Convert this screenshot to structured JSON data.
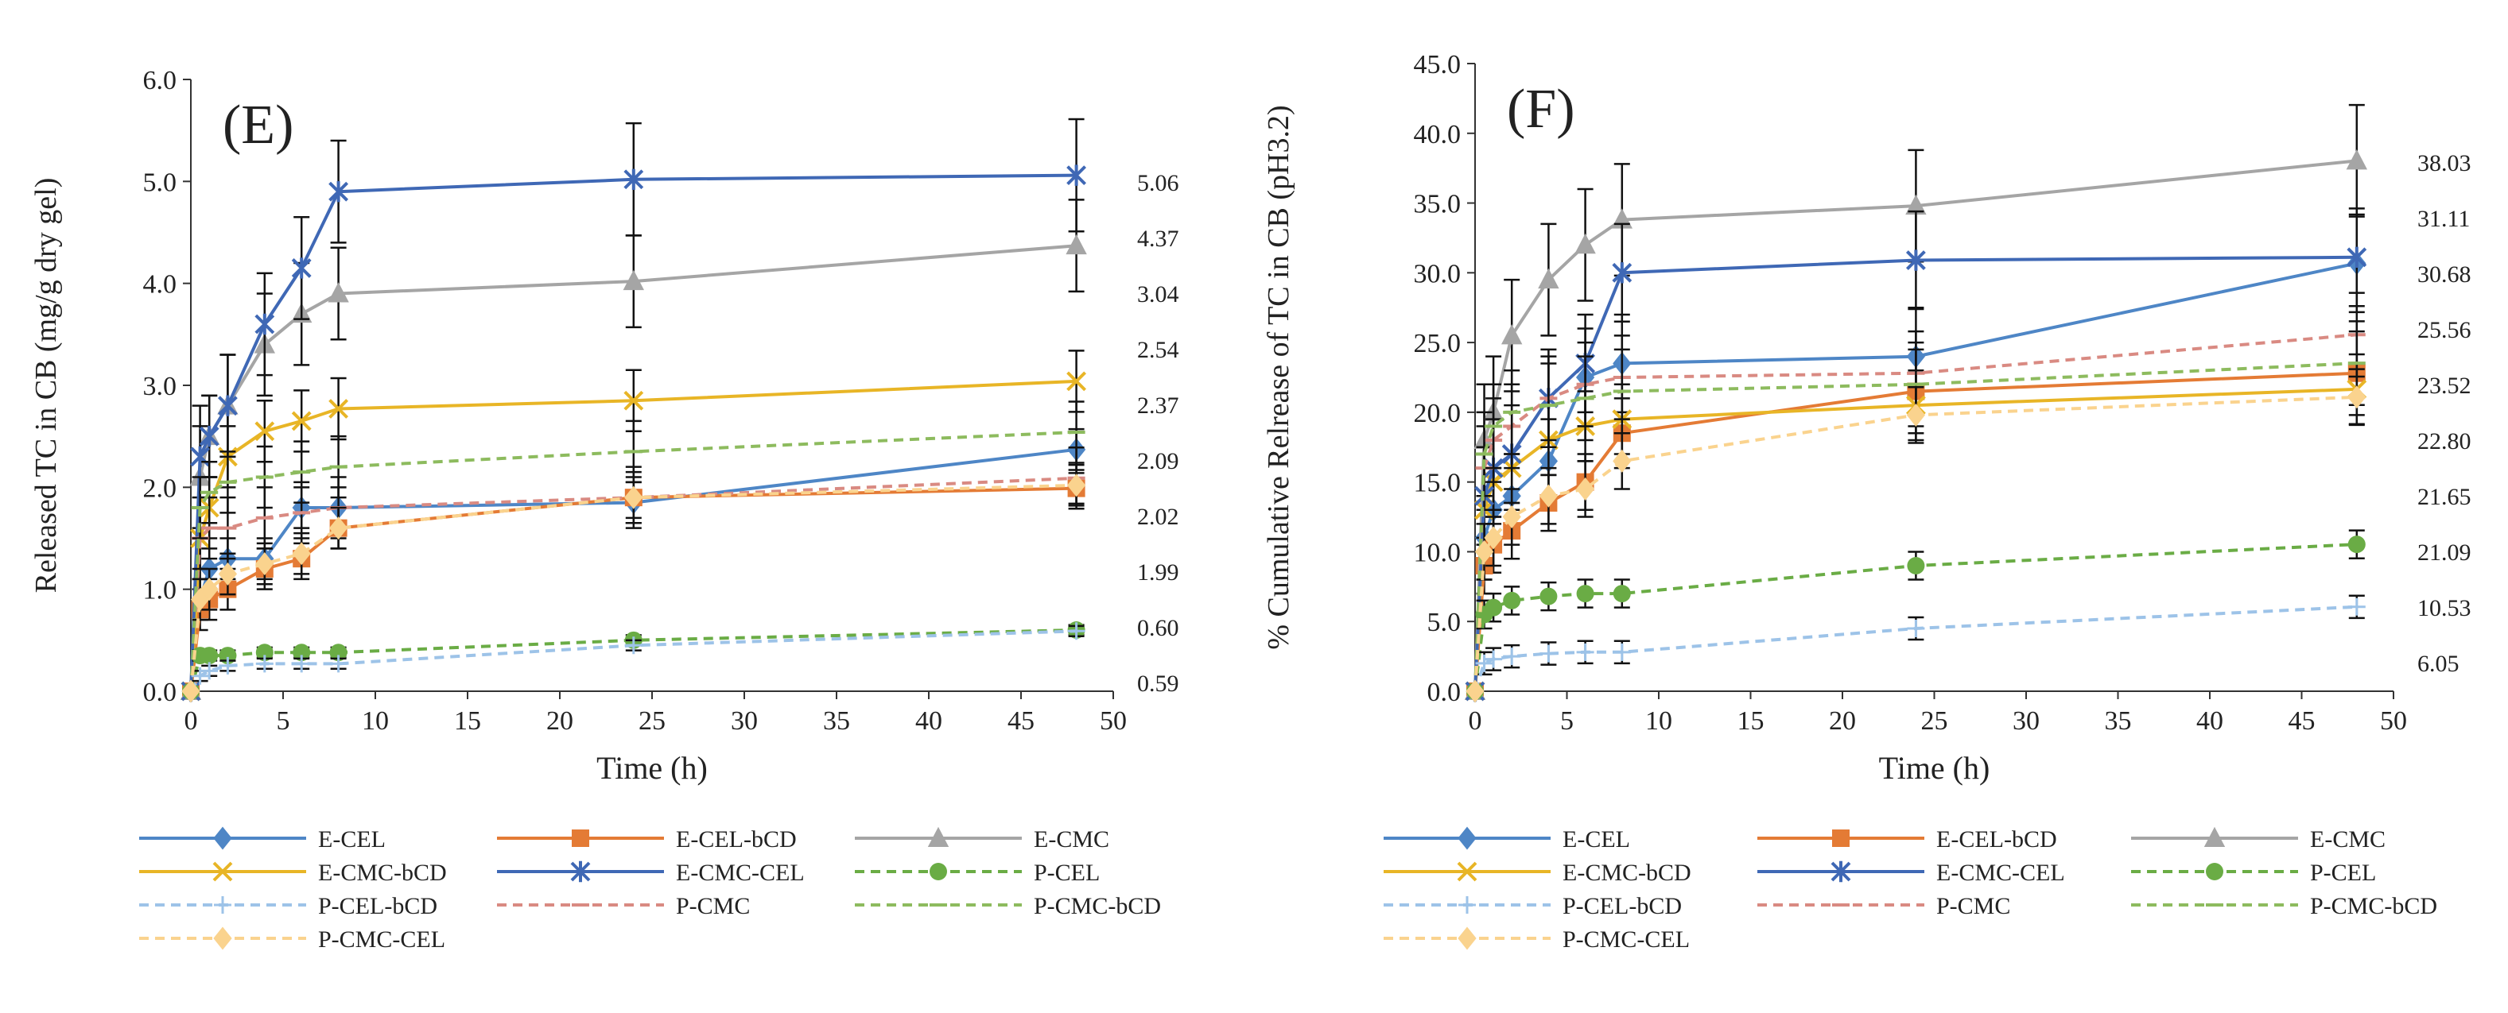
{
  "chart_data": [
    {
      "type": "line",
      "panel_label": "(E)",
      "ylabel": "Released TC in CB (mg/g dry gel)",
      "xlabel": "Time (h)",
      "xlim": [
        0,
        50
      ],
      "ylim": [
        0,
        6
      ],
      "x_ticks": [
        "0",
        "5",
        "10",
        "15",
        "20",
        "25",
        "30",
        "35",
        "40",
        "45",
        "50"
      ],
      "y_ticks": [
        "0.0",
        "1.0",
        "2.0",
        "3.0",
        "4.0",
        "5.0",
        "6.0"
      ],
      "x": [
        0,
        0.5,
        1,
        2,
        4,
        6,
        8,
        24,
        48
      ],
      "series": [
        {
          "name": "E-CEL",
          "values": [
            0,
            0.9,
            1.2,
            1.3,
            1.3,
            1.8,
            1.8,
            1.85,
            2.37
          ],
          "errors": [
            0,
            0.2,
            0.2,
            0.2,
            0.2,
            0.2,
            0.2,
            0.2,
            0.2
          ]
        },
        {
          "name": "E-CEL-bCD",
          "values": [
            0,
            0.8,
            0.9,
            1.0,
            1.2,
            1.3,
            1.6,
            1.9,
            1.99
          ],
          "errors": [
            0,
            0.2,
            0.2,
            0.2,
            0.2,
            0.2,
            0.2,
            0.25,
            0.15
          ]
        },
        {
          "name": "E-CMC",
          "values": [
            0,
            2.1,
            2.5,
            2.8,
            3.4,
            3.7,
            3.9,
            4.02,
            4.37
          ],
          "errors": [
            0,
            0.5,
            0.4,
            0.5,
            0.5,
            0.5,
            0.45,
            0.45,
            0.45
          ]
        },
        {
          "name": "E-CMC-bCD",
          "values": [
            0,
            1.5,
            1.8,
            2.3,
            2.55,
            2.65,
            2.77,
            2.85,
            3.04
          ],
          "errors": [
            0,
            0.4,
            0.3,
            0.3,
            0.3,
            0.3,
            0.3,
            0.3,
            0.3
          ]
        },
        {
          "name": "E-CMC-CEL",
          "values": [
            0,
            2.3,
            2.5,
            2.8,
            3.6,
            4.15,
            4.9,
            5.02,
            5.06
          ],
          "errors": [
            0,
            0.5,
            0.4,
            0.5,
            0.5,
            0.5,
            0.5,
            0.55,
            0.55
          ]
        },
        {
          "name": "P-CEL",
          "values": [
            0,
            0.35,
            0.35,
            0.35,
            0.38,
            0.38,
            0.38,
            0.5,
            0.6
          ],
          "errors": [
            0,
            0.05,
            0.05,
            0.05,
            0.05,
            0.05,
            0.05,
            0.05,
            0.05
          ]
        },
        {
          "name": "P-CEL-bCD",
          "values": [
            0,
            0.15,
            0.2,
            0.25,
            0.27,
            0.27,
            0.27,
            0.45,
            0.59
          ],
          "errors": [
            0,
            0.05,
            0.05,
            0.05,
            0.05,
            0.05,
            0.05,
            0.05,
            0.05
          ]
        },
        {
          "name": "P-CMC",
          "values": [
            0,
            1.5,
            1.6,
            1.6,
            1.7,
            1.75,
            1.8,
            1.9,
            2.09
          ],
          "errors": [
            0,
            0.3,
            0.3,
            0.3,
            0.3,
            0.3,
            0.3,
            0.3,
            0.3
          ]
        },
        {
          "name": "P-CMC-bCD",
          "values": [
            0,
            1.8,
            1.95,
            2.05,
            2.1,
            2.15,
            2.2,
            2.35,
            2.54
          ],
          "errors": [
            0,
            0.3,
            0.3,
            0.3,
            0.3,
            0.3,
            0.3,
            0.3,
            0.3
          ]
        },
        {
          "name": "P-CMC-CEL",
          "values": [
            0,
            0.9,
            1.0,
            1.15,
            1.25,
            1.35,
            1.6,
            1.9,
            2.02
          ],
          "errors": [
            0,
            0.2,
            0.2,
            0.2,
            0.2,
            0.2,
            0.2,
            0.2,
            0.2
          ]
        }
      ],
      "end_labels": [
        "5.06",
        "4.37",
        "3.04",
        "2.54",
        "2.37",
        "2.09",
        "2.02",
        "1.99",
        "0.60",
        "0.59"
      ]
    },
    {
      "type": "line",
      "panel_label": "(F)",
      "ylabel": "% Cumulative Relrease of TC in CB (pH3.2)",
      "xlabel": "Time (h)",
      "xlim": [
        0,
        50
      ],
      "ylim": [
        0,
        45
      ],
      "x_ticks": [
        "0",
        "5",
        "10",
        "15",
        "20",
        "25",
        "30",
        "35",
        "40",
        "45",
        "50"
      ],
      "y_ticks": [
        "0.0",
        "5.0",
        "10.0",
        "15.0",
        "20.0",
        "25.0",
        "30.0",
        "35.0",
        "40.0",
        "45.0"
      ],
      "x": [
        0,
        0.5,
        1,
        2,
        4,
        6,
        8,
        24,
        48
      ],
      "series": [
        {
          "name": "E-CEL",
          "values": [
            0,
            11,
            13,
            14,
            16.5,
            22.5,
            23.5,
            24,
            30.68
          ],
          "errors": [
            0,
            3,
            3,
            3,
            3,
            3.5,
            3.5,
            3.5,
            3.5
          ]
        },
        {
          "name": "E-CEL-bCD",
          "values": [
            0,
            9,
            10.5,
            11.5,
            13.5,
            15,
            18.5,
            21.5,
            22.8
          ],
          "errors": [
            0,
            2,
            2,
            2,
            2,
            2,
            2.5,
            3,
            3
          ]
        },
        {
          "name": "E-CMC",
          "values": [
            0,
            18,
            20,
            25.5,
            29.5,
            32,
            33.8,
            34.8,
            38.03
          ],
          "errors": [
            0,
            4,
            4,
            4,
            4,
            4,
            4,
            4,
            4
          ]
        },
        {
          "name": "E-CMC-bCD",
          "values": [
            0,
            13,
            15,
            16,
            18,
            19,
            19.5,
            20.5,
            21.65
          ],
          "errors": [
            0,
            3,
            3,
            3,
            2.5,
            2.5,
            2.5,
            2.5,
            2.5
          ]
        },
        {
          "name": "E-CMC-CEL",
          "values": [
            0,
            14,
            16,
            17,
            21,
            23.5,
            30,
            30.9,
            31.11
          ],
          "errors": [
            0,
            3.5,
            3.5,
            3.5,
            3.5,
            3.5,
            3.5,
            3.5,
            3.5
          ]
        },
        {
          "name": "P-CEL",
          "values": [
            0,
            5.5,
            6,
            6.5,
            6.8,
            7,
            7,
            9,
            10.53
          ],
          "errors": [
            0,
            1,
            1,
            1,
            1,
            1,
            1,
            1,
            1
          ]
        },
        {
          "name": "P-CEL-bCD",
          "values": [
            0,
            2,
            2.3,
            2.5,
            2.7,
            2.8,
            2.8,
            4.5,
            6.05
          ],
          "errors": [
            0,
            0.8,
            0.8,
            0.8,
            0.8,
            0.8,
            0.8,
            0.8,
            0.8
          ]
        },
        {
          "name": "P-CMC",
          "values": [
            0,
            16,
            18,
            19,
            21,
            22,
            22.5,
            22.8,
            25.56
          ],
          "errors": [
            0,
            3,
            3,
            3,
            3,
            3,
            3,
            3,
            3
          ]
        },
        {
          "name": "P-CMC-bCD",
          "values": [
            0,
            17,
            19,
            20,
            20.5,
            21,
            21.5,
            22,
            23.52
          ],
          "errors": [
            0,
            3,
            3,
            3,
            3,
            3,
            3,
            3,
            3
          ]
        },
        {
          "name": "P-CMC-CEL",
          "values": [
            0,
            10,
            11,
            12.5,
            14,
            14.5,
            16.5,
            19.8,
            21.09
          ],
          "errors": [
            0,
            2,
            2,
            2,
            2,
            2,
            2,
            2,
            2
          ]
        }
      ],
      "end_labels": [
        "38.03",
        "31.11",
        "30.68",
        "25.56",
        "23.52",
        "22.80",
        "21.65",
        "21.09",
        "10.53",
        "6.05"
      ]
    }
  ],
  "legend": [
    {
      "name": "E-CEL",
      "color": "#4e86c6",
      "dash": "solid",
      "marker": "diamond"
    },
    {
      "name": "E-CEL-bCD",
      "color": "#e47b35",
      "dash": "solid",
      "marker": "square"
    },
    {
      "name": "E-CMC",
      "color": "#a5a5a5",
      "dash": "solid",
      "marker": "triangle"
    },
    {
      "name": "E-CMC-bCD",
      "color": "#e8b526",
      "dash": "solid",
      "marker": "x"
    },
    {
      "name": "E-CMC-CEL",
      "color": "#3f68b5",
      "dash": "solid",
      "marker": "star"
    },
    {
      "name": "P-CEL",
      "color": "#6aac45",
      "dash": "dashed",
      "marker": "circle"
    },
    {
      "name": "P-CEL-bCD",
      "color": "#9dc3e8",
      "dash": "dashed",
      "marker": "plus"
    },
    {
      "name": "P-CMC",
      "color": "#d98a82",
      "dash": "dashed",
      "marker": "dash"
    },
    {
      "name": "P-CMC-bCD",
      "color": "#8dbb5e",
      "dash": "dashed",
      "marker": "dash"
    },
    {
      "name": "P-CMC-CEL",
      "color": "#fad38e",
      "dash": "dashed",
      "marker": "diamond"
    }
  ]
}
